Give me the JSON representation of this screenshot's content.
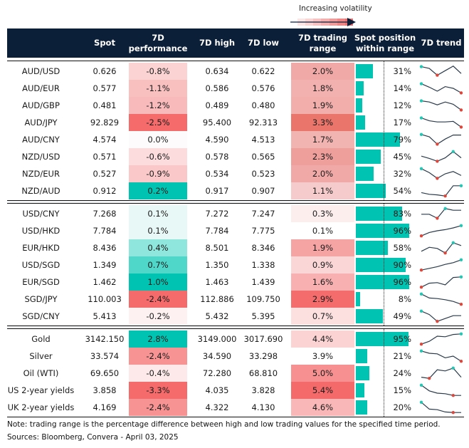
{
  "legend": {
    "label": "Increasing volatility",
    "gradient": [
      "#fde6e6",
      "#fbd4d4",
      "#f8c2c2",
      "#f5afaf",
      "#f29b9b",
      "#ef8787",
      "#ec7373"
    ]
  },
  "colors": {
    "header_bg": "#0c1f38",
    "positive": "#00c4b1",
    "negative": "#f36a6a",
    "bar": "#00c4b1",
    "trend_line": "#2a3a4a",
    "trend_high_dot": "#1ec8b4",
    "trend_low_dot": "#e0453a"
  },
  "columns": {
    "spot": "Spot",
    "perf_line1": "7D",
    "perf_line2": "performance",
    "high": "7D high",
    "low": "7D low",
    "range_line1": "7D trading",
    "range_line2": "range",
    "position_line1": "Spot position",
    "position_line2": "within range",
    "trend": "7D trend"
  },
  "groups": [
    {
      "rows": [
        {
          "name": "AUD/USD",
          "spot": "0.626",
          "perf": "-0.8%",
          "perf_bg": "#fbd3d3",
          "high": "0.634",
          "low": "0.622",
          "range": "2.0%",
          "range_bg": "#f0a9a6",
          "position_pct": 31,
          "position": "31%",
          "trend": [
            0.9,
            0.75,
            0.15,
            0.55,
            0.95,
            0.3
          ],
          "hi_idx": 0,
          "lo_idx": 2
        },
        {
          "name": "AUD/EUR",
          "spot": "0.577",
          "perf": "-1.1%",
          "perf_bg": "#f9c0c0",
          "high": "0.586",
          "low": "0.576",
          "range": "1.8%",
          "range_bg": "#f2b1ae",
          "position_pct": 14,
          "position": "14%",
          "trend": [
            0.9,
            0.6,
            0.25,
            0.65,
            0.5,
            0.1
          ],
          "hi_idx": 0,
          "lo_idx": 5
        },
        {
          "name": "AUD/GBP",
          "spot": "0.481",
          "perf": "-1.2%",
          "perf_bg": "#f8baba",
          "high": "0.489",
          "low": "0.480",
          "range": "1.9%",
          "range_bg": "#f1aeab",
          "position_pct": 12,
          "position": "12%",
          "trend": [
            0.9,
            0.8,
            0.55,
            0.8,
            0.6,
            0.1
          ],
          "hi_idx": 0,
          "lo_idx": 5
        },
        {
          "name": "AUD/JPY",
          "spot": "92.829",
          "perf": "-2.5%",
          "perf_bg": "#f56a6a",
          "high": "95.400",
          "low": "92.313",
          "range": "3.3%",
          "range_bg": "#e9756b",
          "position_pct": 17,
          "position": "17%",
          "trend": [
            0.9,
            0.65,
            0.55,
            0.55,
            0.6,
            0.1
          ],
          "hi_idx": 0,
          "lo_idx": 5
        },
        {
          "name": "AUD/CNY",
          "spot": "4.574",
          "perf": "0.0%",
          "perf_bg": "#fdfbfb",
          "high": "4.590",
          "low": "4.513",
          "range": "1.7%",
          "range_bg": "#f2b4b1",
          "position_pct": 79,
          "position": "79%",
          "trend": [
            0.95,
            0.75,
            0.1,
            0.55,
            0.9,
            0.9
          ],
          "hi_idx": 0,
          "lo_idx": 2
        },
        {
          "name": "NZD/USD",
          "spot": "0.571",
          "perf": "-0.6%",
          "perf_bg": "#fcdcdc",
          "high": "0.578",
          "low": "0.565",
          "range": "2.3%",
          "range_bg": "#ee9f9b",
          "position_pct": 45,
          "position": "45%",
          "trend": [
            0.55,
            0.35,
            0.1,
            0.4,
            0.95,
            0.4
          ],
          "hi_idx": 4,
          "lo_idx": 2
        },
        {
          "name": "NZD/EUR",
          "spot": "0.527",
          "perf": "-0.9%",
          "perf_bg": "#fac8c8",
          "high": "0.534",
          "low": "0.523",
          "range": "2.0%",
          "range_bg": "#f0a9a6",
          "position_pct": 32,
          "position": "32%",
          "trend": [
            0.95,
            0.6,
            0.1,
            0.5,
            0.7,
            0.35
          ],
          "hi_idx": 0,
          "lo_idx": 2
        },
        {
          "name": "NZD/AUD",
          "spot": "0.912",
          "perf": "0.2%",
          "perf_bg": "#00c4b1",
          "high": "0.917",
          "low": "0.907",
          "range": "1.1%",
          "range_bg": "#f5cccb",
          "position_pct": 54,
          "position": "54%",
          "trend": [
            0.35,
            0.2,
            0.15,
            0.05,
            0.95,
            0.95
          ],
          "hi_idx": 5,
          "lo_idx": 3
        }
      ]
    },
    {
      "rows": [
        {
          "name": "USD/CNY",
          "spot": "7.268",
          "perf": "0.1%",
          "perf_bg": "#e8f8f6",
          "high": "7.272",
          "low": "7.247",
          "range": "0.3%",
          "range_bg": "#fdeeee",
          "position_pct": 83,
          "position": "83%",
          "trend": [
            0.45,
            0.45,
            0.1,
            0.95,
            0.8,
            0.8
          ],
          "hi_idx": 3,
          "lo_idx": 2
        },
        {
          "name": "USD/HKD",
          "spot": "7.784",
          "perf": "0.1%",
          "perf_bg": "#e8f8f6",
          "high": "7.784",
          "low": "7.775",
          "range": "0.1%",
          "range_bg": "#ffffff",
          "position_pct": 96,
          "position": "96%",
          "trend": [
            0.05,
            0.35,
            0.5,
            0.6,
            0.75,
            0.95
          ],
          "hi_idx": 5,
          "lo_idx": 0
        },
        {
          "name": "EUR/HKD",
          "spot": "8.436",
          "perf": "0.4%",
          "perf_bg": "#8ee6dc",
          "high": "8.501",
          "low": "8.346",
          "range": "1.9%",
          "range_bg": "#f6a3a3",
          "position_pct": 58,
          "position": "58%",
          "trend": [
            0.2,
            0.55,
            0.45,
            0.05,
            0.95,
            0.7
          ],
          "hi_idx": 4,
          "lo_idx": 3
        },
        {
          "name": "USD/SGD",
          "spot": "1.349",
          "perf": "0.7%",
          "perf_bg": "#4fd8c9",
          "high": "1.350",
          "low": "1.338",
          "range": "0.9%",
          "range_bg": "#fbd6d6",
          "position_pct": 90,
          "position": "90%",
          "trend": [
            0.05,
            0.2,
            0.35,
            0.55,
            0.7,
            0.95
          ],
          "hi_idx": 5,
          "lo_idx": 0
        },
        {
          "name": "EUR/SGD",
          "spot": "1.462",
          "perf": "1.0%",
          "perf_bg": "#00c4b1",
          "high": "1.463",
          "low": "1.439",
          "range": "1.6%",
          "range_bg": "#f8b0b0",
          "position_pct": 96,
          "position": "96%",
          "trend": [
            0.05,
            0.4,
            0.45,
            0.25,
            0.9,
            0.95
          ],
          "hi_idx": 5,
          "lo_idx": 0
        },
        {
          "name": "SGD/JPY",
          "spot": "110.003",
          "perf": "-2.4%",
          "perf_bg": "#f56a6a",
          "high": "112.886",
          "low": "109.750",
          "range": "2.9%",
          "range_bg": "#f46c6c",
          "position_pct": 8,
          "position": "8%",
          "trend": [
            0.95,
            0.6,
            0.55,
            0.45,
            0.3,
            0.05
          ],
          "hi_idx": 0,
          "lo_idx": 5
        },
        {
          "name": "SGD/CNY",
          "spot": "5.413",
          "perf": "-0.2%",
          "perf_bg": "#fdf1f1",
          "high": "5.432",
          "low": "5.395",
          "range": "0.7%",
          "range_bg": "#fce0e0",
          "position_pct": 49,
          "position": "49%",
          "trend": [
            0.95,
            0.65,
            0.05,
            0.3,
            0.55,
            0.55
          ],
          "hi_idx": 0,
          "lo_idx": 2
        }
      ]
    },
    {
      "rows": [
        {
          "name": "Gold",
          "spot": "3142.150",
          "perf": "2.8%",
          "perf_bg": "#00c4b1",
          "high": "3149.000",
          "low": "3017.690",
          "range": "4.4%",
          "range_bg": "#fcd3d3",
          "position_pct": 95,
          "position": "95%",
          "trend": [
            0.05,
            0.3,
            0.75,
            0.7,
            0.9,
            0.95
          ],
          "hi_idx": 5,
          "lo_idx": 0
        },
        {
          "name": "Silver",
          "spot": "33.574",
          "perf": "-2.4%",
          "perf_bg": "#f79393",
          "high": "34.590",
          "low": "33.298",
          "range": "3.9%",
          "range_bg": "#ffffff",
          "position_pct": 21,
          "position": "21%",
          "trend": [
            0.95,
            0.75,
            0.7,
            0.35,
            0.5,
            0.05
          ],
          "hi_idx": 0,
          "lo_idx": 5
        },
        {
          "name": "Oil (WTI)",
          "spot": "69.650",
          "perf": "-0.4%",
          "perf_bg": "#fde9e9",
          "high": "72.280",
          "low": "68.810",
          "range": "5.0%",
          "range_bg": "#f79191",
          "position_pct": 24,
          "position": "24%",
          "trend": [
            0.15,
            0.05,
            0.8,
            0.7,
            0.95,
            0.15
          ],
          "hi_idx": 4,
          "lo_idx": 1
        },
        {
          "name": "US 2-year yields",
          "spot": "3.858",
          "perf": "-3.3%",
          "perf_bg": "#f56a6a",
          "high": "4.035",
          "low": "3.828",
          "range": "5.4%",
          "range_bg": "#f46a6a",
          "position_pct": 15,
          "position": "15%",
          "trend": [
            0.95,
            0.45,
            0.25,
            0.2,
            0.05,
            0.05
          ],
          "hi_idx": 0,
          "lo_idx": 4
        },
        {
          "name": "UK 2-year yields",
          "spot": "4.169",
          "perf": "-2.4%",
          "perf_bg": "#f79393",
          "high": "4.322",
          "low": "4.130",
          "range": "4.6%",
          "range_bg": "#fab7b7",
          "position_pct": 20,
          "position": "20%",
          "trend": [
            0.95,
            0.35,
            0.3,
            0.1,
            0.05,
            0.05
          ],
          "hi_idx": 0,
          "lo_idx": 4
        }
      ]
    }
  ],
  "footer": {
    "note": "Note: trading range is the percentage difference between high and low trading values for the specified time period.",
    "sources": "Sources: Bloomberg, Convera - April 03, 2025"
  }
}
